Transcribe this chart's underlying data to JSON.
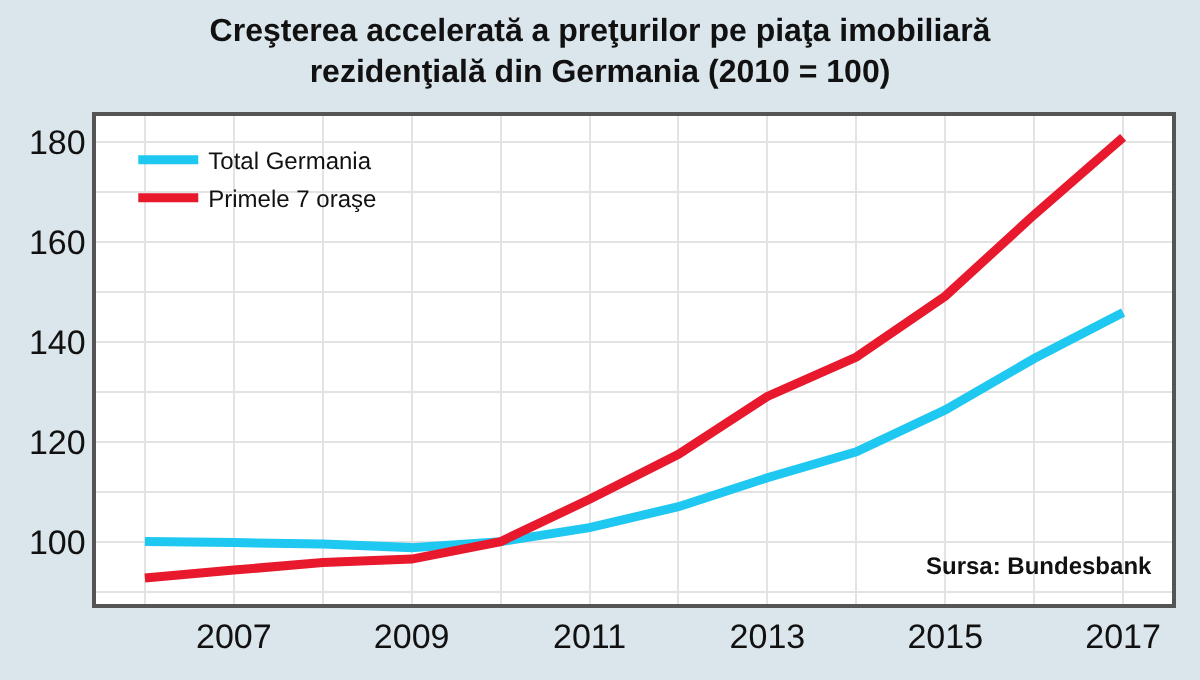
{
  "chart_data": {
    "type": "line",
    "title": "Creşterea accelerată a preţurilor pe piaţa imobiliară\nrezidenţială din Germania (2010 = 100)",
    "x": [
      2006,
      2007,
      2008,
      2009,
      2010,
      2011,
      2012,
      2013,
      2014,
      2015,
      2016,
      2017
    ],
    "series": [
      {
        "name": "Total Germania",
        "color": "#1ec8f0",
        "values": [
          100,
          99.8,
          99.5,
          98.8,
          100,
          102.8,
          107,
          112.8,
          118,
          126.4,
          136.7,
          145.9
        ]
      },
      {
        "name": "Primele 7 oraşe",
        "color": "#e8192c",
        "values": [
          92.7,
          94.3,
          95.8,
          96.5,
          100,
          108.5,
          117.5,
          129.1,
          137,
          149.2,
          165.5,
          181
        ]
      }
    ],
    "xlim": [
      2005.45,
      2017.55
    ],
    "xticks": [
      {
        "value": 2006,
        "label": null
      },
      2007,
      {
        "value": 2008,
        "label": null
      },
      2009,
      {
        "value": 2010,
        "label": null
      },
      2011,
      {
        "value": 2012,
        "label": null
      },
      2013,
      {
        "value": 2014,
        "label": null
      },
      2015,
      {
        "value": 2016,
        "label": null
      },
      2017
    ],
    "ylim": [
      87.5,
      185.3
    ],
    "yticks": [
      {
        "value": 90,
        "label": null
      },
      100,
      {
        "value": 110,
        "label": null
      },
      120,
      {
        "value": 130,
        "label": null
      },
      140,
      {
        "value": 150,
        "label": null
      },
      160,
      {
        "value": 170,
        "label": null
      },
      180
    ],
    "grid": true,
    "legend": "top left",
    "marker": "none",
    "line_style": "solid",
    "annotations": [
      "Sursa: Bundesbank"
    ]
  }
}
